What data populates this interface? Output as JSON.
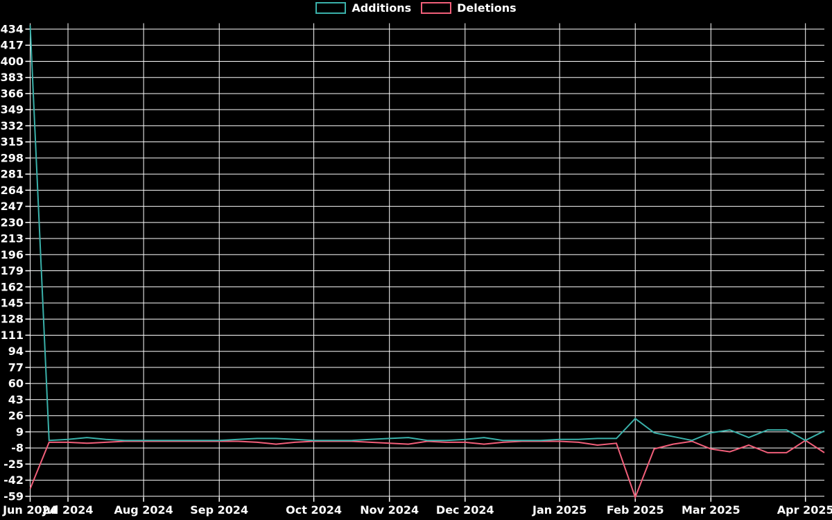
{
  "chart_data": {
    "type": "line",
    "title": "",
    "legend_position": "top-center",
    "background_color": "#000000",
    "grid_color": "#ffffff",
    "text_color": "#ffffff",
    "grid": true,
    "x_unit": "week",
    "x_points": 43,
    "x_ticks": [
      {
        "label": "Jun 2024",
        "week": 0
      },
      {
        "label": "Jul 2024",
        "week": 2
      },
      {
        "label": "Aug 2024",
        "week": 6
      },
      {
        "label": "Sep 2024",
        "week": 10
      },
      {
        "label": "Oct 2024",
        "week": 15
      },
      {
        "label": "Nov 2024",
        "week": 19
      },
      {
        "label": "Dec 2024",
        "week": 23
      },
      {
        "label": "Jan 2025",
        "week": 28
      },
      {
        "label": "Feb 2025",
        "week": 32
      },
      {
        "label": "Mar 2025",
        "week": 36
      },
      {
        "label": "Apr 2025",
        "week": 41
      }
    ],
    "y_ticks": [
      434,
      417,
      400,
      383,
      366,
      349,
      332,
      315,
      298,
      281,
      264,
      247,
      230,
      213,
      196,
      179,
      162,
      145,
      128,
      111,
      94,
      77,
      60,
      43,
      26,
      9,
      -8,
      -25,
      -42,
      -59
    ],
    "y_tick_step": 17,
    "y_range": [
      -60,
      438
    ],
    "series": [
      {
        "name": "Additions",
        "color": "#3ab1aa",
        "values": [
          438,
          0,
          1,
          3,
          1,
          0,
          0,
          0,
          0,
          0,
          0,
          1,
          2,
          2,
          1,
          0,
          0,
          0,
          1,
          2,
          3,
          0,
          0,
          1,
          3,
          0,
          0,
          0,
          1,
          1,
          2,
          2,
          23,
          8,
          4,
          0,
          8,
          11,
          3,
          11,
          11,
          0,
          10
        ]
      },
      {
        "name": "Deletions",
        "color": "#f25f7a",
        "values": [
          -51,
          -2,
          -2,
          -3,
          -2,
          -1,
          -1,
          -1,
          -1,
          -1,
          -1,
          -1,
          -2,
          -4,
          -2,
          -1,
          -1,
          -1,
          -2,
          -3,
          -4,
          -1,
          -2,
          -2,
          -4,
          -2,
          -1,
          -1,
          -1,
          -2,
          -5,
          -3,
          -60,
          -9,
          -4,
          -1,
          -9,
          -12,
          -5,
          -13,
          -13,
          0,
          -13
        ]
      }
    ]
  }
}
